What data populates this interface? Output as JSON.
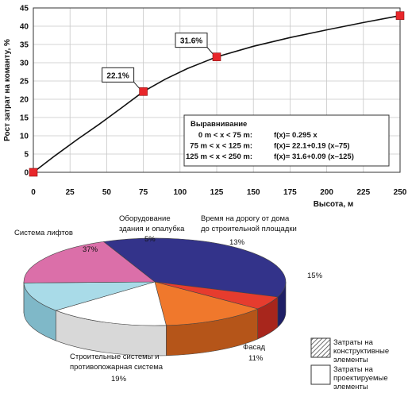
{
  "chart_data": [
    {
      "type": "line",
      "xlabel": "Высота, м",
      "ylabel": "Рост затрат на команту, %",
      "xlim": [
        0,
        250
      ],
      "ylim": [
        0,
        45
      ],
      "xticks": [
        0,
        25,
        50,
        75,
        100,
        125,
        150,
        175,
        200,
        225,
        250
      ],
      "yticks": [
        0,
        5,
        10,
        15,
        20,
        25,
        30,
        35,
        40,
        45
      ],
      "grid": true,
      "points": [
        {
          "x": 0,
          "y": 0
        },
        {
          "x": 75,
          "y": 22.1
        },
        {
          "x": 125,
          "y": 31.6
        },
        {
          "x": 250,
          "y": 42.9
        }
      ],
      "curve": [
        {
          "x": 0,
          "y": 0
        },
        {
          "x": 15,
          "y": 4.6
        },
        {
          "x": 30,
          "y": 9.0
        },
        {
          "x": 45,
          "y": 13.2
        },
        {
          "x": 60,
          "y": 17.6
        },
        {
          "x": 75,
          "y": 22.1
        },
        {
          "x": 90,
          "y": 25.5
        },
        {
          "x": 105,
          "y": 28.4
        },
        {
          "x": 125,
          "y": 31.6
        },
        {
          "x": 150,
          "y": 34.5
        },
        {
          "x": 175,
          "y": 36.9
        },
        {
          "x": 200,
          "y": 39.0
        },
        {
          "x": 225,
          "y": 41.0
        },
        {
          "x": 250,
          "y": 42.9
        }
      ],
      "annotations": [
        {
          "text": "22.1%",
          "x": 75,
          "y": 22.1
        },
        {
          "text": "31.6%",
          "x": 125,
          "y": 31.6
        }
      ],
      "fit_box": {
        "title": "Выравнивание",
        "rows": [
          {
            "range": "0 m < x < 75 m:",
            "formula": "f(x)= 0.295 x"
          },
          {
            "range": "75 m < x < 125 m:",
            "formula": "f(x)= 22.1+0.19 (x–75)"
          },
          {
            "range": "125 m < x < 250 m:",
            "formula": "f(x)= 31.6+0.09 (x–125)"
          }
        ]
      }
    },
    {
      "type": "pie",
      "style": "3d",
      "slices": [
        {
          "label": "Система лифтов",
          "value": 37,
          "value_label": "37%",
          "color": "#33338a",
          "side": "#1f1f66"
        },
        {
          "label": "Оборудование здания и опалубка",
          "value": 5,
          "value_label": "5%",
          "color": "#e63c2e",
          "side": "#a8261c"
        },
        {
          "label": "Время на дорогу от дома до строительной площадки",
          "value": 13,
          "value_label": "13%",
          "color": "#f0782c",
          "side": "#b55519"
        },
        {
          "label": "",
          "value": 15,
          "value_label": "15%",
          "color": "#ffffff",
          "side": "#d8d8d8"
        },
        {
          "label": "Фасад",
          "value": 11,
          "value_label": "11%",
          "color": "#a9dbe8",
          "side": "#7fb8c8"
        },
        {
          "label": "Строительные системы и противопожарная система",
          "value": 19,
          "value_label": "19%",
          "color": "#db6fa9",
          "side": "#b04f85"
        }
      ],
      "legend": [
        {
          "label": "Затраты на конструктивные элементы",
          "pattern": "hatch"
        },
        {
          "label": "Затраты на проектируемые элементы",
          "pattern": "plain"
        }
      ]
    }
  ]
}
